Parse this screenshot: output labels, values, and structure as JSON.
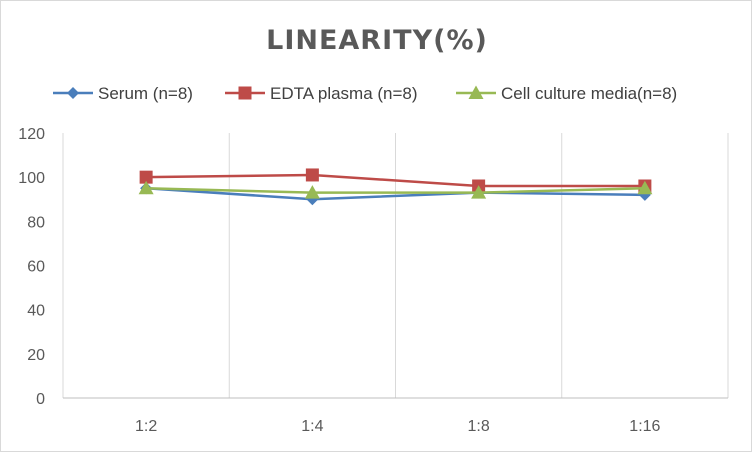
{
  "chart_data": {
    "type": "line",
    "title": "LINEARITY(%)",
    "xlabel": "",
    "ylabel": "",
    "categories": [
      "1:2",
      "1:4",
      "1:8",
      "1:16"
    ],
    "ylim": [
      0,
      120
    ],
    "yticks": [
      0,
      20,
      40,
      60,
      80,
      100,
      120
    ],
    "grid": "vertical",
    "legend_position": "top",
    "series": [
      {
        "name": "Serum (n=8)",
        "values": [
          95,
          90,
          93,
          92
        ],
        "color": "#4a7ebb",
        "marker": "diamond"
      },
      {
        "name": "EDTA plasma (n=8)",
        "values": [
          100,
          101,
          96,
          96
        ],
        "color": "#be4b48",
        "marker": "square"
      },
      {
        "name": "Cell culture media(n=8)",
        "values": [
          95,
          93,
          93,
          95
        ],
        "color": "#98b954",
        "marker": "triangle"
      }
    ]
  }
}
